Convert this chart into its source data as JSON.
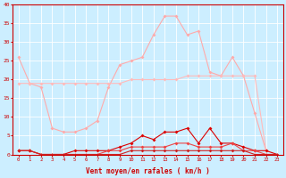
{
  "x": [
    0,
    1,
    2,
    3,
    4,
    5,
    6,
    7,
    8,
    9,
    10,
    11,
    12,
    13,
    14,
    15,
    16,
    17,
    18,
    19,
    20,
    21,
    22,
    23
  ],
  "line_rafales_peak": [
    26,
    19,
    18,
    7,
    6,
    6,
    7,
    9,
    18,
    24,
    25,
    26,
    32,
    37,
    37,
    32,
    33,
    22,
    21,
    26,
    21,
    11,
    1,
    null
  ],
  "line_rafales_trend": [
    19,
    19,
    19,
    19,
    19,
    19,
    19,
    19,
    19,
    19,
    20,
    20,
    20,
    20,
    20,
    21,
    21,
    21,
    21,
    21,
    21,
    21,
    1,
    null
  ],
  "line_moyen_peak": [
    1,
    1,
    0,
    0,
    0,
    1,
    1,
    1,
    1,
    2,
    3,
    5,
    4,
    6,
    6,
    7,
    3,
    7,
    3,
    3,
    2,
    1,
    1,
    0
  ],
  "line_moyen_mid": [
    1,
    1,
    0,
    0,
    0,
    0,
    0,
    0,
    1,
    1,
    2,
    2,
    2,
    2,
    3,
    3,
    2,
    2,
    2,
    3,
    1,
    1,
    0,
    0
  ],
  "line_moyen_low": [
    1,
    1,
    0,
    0,
    0,
    0,
    0,
    0,
    0,
    0,
    1,
    1,
    1,
    1,
    1,
    1,
    1,
    1,
    1,
    1,
    1,
    0,
    0,
    0
  ],
  "xlabel": "Vent moyen/en rafales ( km/h )",
  "ylim": [
    0,
    40
  ],
  "xlim": [
    -0.5,
    23.5
  ],
  "yticks": [
    0,
    5,
    10,
    15,
    20,
    25,
    30,
    35,
    40
  ],
  "xticks": [
    0,
    1,
    2,
    3,
    4,
    5,
    6,
    7,
    8,
    9,
    10,
    11,
    12,
    13,
    14,
    15,
    16,
    17,
    18,
    19,
    20,
    21,
    22,
    23
  ],
  "bg_color": "#cceeff",
  "grid_color": "#ffffff",
  "color_light1": "#ffaaaa",
  "color_light2": "#ffbbbb",
  "color_dark1": "#dd0000",
  "color_dark2": "#ee4444",
  "color_dark3": "#cc2222",
  "marker_size": 2.0,
  "linewidth": 0.8
}
